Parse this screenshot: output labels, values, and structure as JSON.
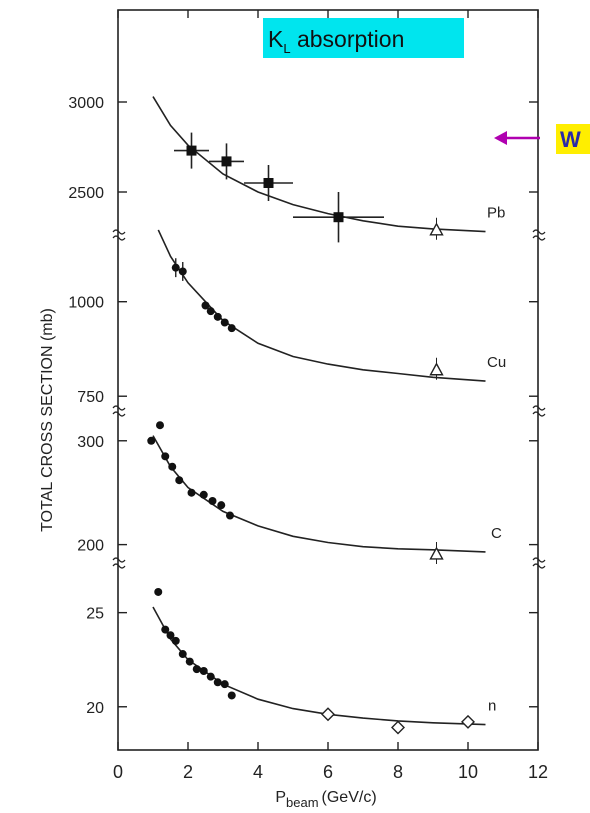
{
  "chart_data": {
    "type": "scatter",
    "title": "K",
    "title_subscript": "L",
    "title_rest": " absorption",
    "title_bg": "#00e5ee",
    "xlabel_main": "P",
    "xlabel_sub": "beam",
    "xlabel_unit": "(GeV/c)",
    "ylabel": "TOTAL CROSS SECTION (mb)",
    "x_ticks": [
      "0",
      "2",
      "4",
      "6",
      "8",
      "10",
      "12"
    ],
    "xlim": [
      0,
      12
    ],
    "annotation": {
      "text": "W",
      "text_bg": "#ffee00",
      "arrow_color": "#b000b0"
    },
    "panels": [
      {
        "name": "Pb",
        "ylim": [
          2300,
          3300
        ],
        "y_ticks": [
          "3000",
          "2500"
        ],
        "tick_values": [
          3000,
          2500
        ],
        "squares": [
          {
            "x": 2.1,
            "y": 2730,
            "xerr": 0.5,
            "yerr": 100
          },
          {
            "x": 3.1,
            "y": 2670,
            "xerr": 0.5,
            "yerr": 100
          },
          {
            "x": 4.3,
            "y": 2550,
            "xerr": 0.7,
            "yerr": 100
          },
          {
            "x": 6.3,
            "y": 2360,
            "xerr": 1.3,
            "yerr": 140
          }
        ],
        "triangles": [
          {
            "x": 9.1,
            "y": 2290
          }
        ],
        "curve": [
          [
            1.0,
            3030
          ],
          [
            1.5,
            2870
          ],
          [
            2,
            2760
          ],
          [
            3,
            2600
          ],
          [
            4,
            2500
          ],
          [
            5,
            2430
          ],
          [
            6,
            2380
          ],
          [
            7,
            2340
          ],
          [
            8,
            2310
          ],
          [
            9,
            2295
          ],
          [
            10.5,
            2280
          ]
        ]
      },
      {
        "name": "Cu",
        "ylim": [
          740,
          1150
        ],
        "y_ticks": [
          "1000",
          "750"
        ],
        "tick_values": [
          1000,
          750
        ],
        "dots": [
          {
            "x": 1.65,
            "y": 1090,
            "yerr": 25
          },
          {
            "x": 1.85,
            "y": 1080,
            "yerr": 25
          },
          {
            "x": 2.5,
            "y": 990
          },
          {
            "x": 2.65,
            "y": 975
          },
          {
            "x": 2.85,
            "y": 960
          },
          {
            "x": 3.05,
            "y": 945
          },
          {
            "x": 3.25,
            "y": 930
          }
        ],
        "triangles": [
          {
            "x": 9.1,
            "y": 820
          }
        ],
        "curve": [
          [
            1.15,
            1190
          ],
          [
            1.5,
            1120
          ],
          [
            2,
            1050
          ],
          [
            2.5,
            1000
          ],
          [
            3,
            950
          ],
          [
            4,
            890
          ],
          [
            5,
            855
          ],
          [
            6,
            835
          ],
          [
            7,
            820
          ],
          [
            8,
            810
          ],
          [
            9,
            800
          ],
          [
            10.5,
            790
          ]
        ]
      },
      {
        "name": "C",
        "ylim": [
          190,
          320
        ],
        "y_ticks": [
          "300",
          "200"
        ],
        "tick_values": [
          300,
          200
        ],
        "dots": [
          {
            "x": 0.95,
            "y": 300
          },
          {
            "x": 1.2,
            "y": 315
          },
          {
            "x": 1.35,
            "y": 285
          },
          {
            "x": 1.55,
            "y": 275
          },
          {
            "x": 1.75,
            "y": 262
          },
          {
            "x": 2.1,
            "y": 250
          },
          {
            "x": 2.45,
            "y": 248
          },
          {
            "x": 2.7,
            "y": 242
          },
          {
            "x": 2.95,
            "y": 238
          },
          {
            "x": 3.2,
            "y": 228
          }
        ],
        "triangles": [
          {
            "x": 9.1,
            "y": 191
          }
        ],
        "curve": [
          [
            1.0,
            305
          ],
          [
            1.5,
            275
          ],
          [
            2,
            255
          ],
          [
            3,
            232
          ],
          [
            4,
            218
          ],
          [
            5,
            208
          ],
          [
            6,
            202
          ],
          [
            7,
            198
          ],
          [
            8,
            196
          ],
          [
            9,
            195
          ],
          [
            10.5,
            193
          ]
        ]
      },
      {
        "name": "n",
        "ylim": [
          18.5,
          27
        ],
        "y_ticks": [
          "25",
          "20"
        ],
        "tick_values": [
          25,
          20
        ],
        "dots": [
          {
            "x": 1.15,
            "y": 26.1
          },
          {
            "x": 1.35,
            "y": 24.1
          },
          {
            "x": 1.5,
            "y": 23.8
          },
          {
            "x": 1.65,
            "y": 23.5
          },
          {
            "x": 1.85,
            "y": 22.8
          },
          {
            "x": 2.05,
            "y": 22.4
          },
          {
            "x": 2.25,
            "y": 22.0
          },
          {
            "x": 2.45,
            "y": 21.9
          },
          {
            "x": 2.65,
            "y": 21.6
          },
          {
            "x": 2.85,
            "y": 21.3
          },
          {
            "x": 3.05,
            "y": 21.2
          },
          {
            "x": 3.25,
            "y": 20.6
          }
        ],
        "diamonds": [
          {
            "x": 6.0,
            "y": 19.6
          },
          {
            "x": 8.0,
            "y": 18.9
          },
          {
            "x": 10.0,
            "y": 19.2
          }
        ],
        "curve": [
          [
            1.0,
            25.3
          ],
          [
            1.5,
            23.6
          ],
          [
            2,
            22.5
          ],
          [
            3,
            21.2
          ],
          [
            4,
            20.4
          ],
          [
            5,
            19.9
          ],
          [
            6,
            19.6
          ],
          [
            7,
            19.4
          ],
          [
            8,
            19.25
          ],
          [
            9,
            19.15
          ],
          [
            10.5,
            19.05
          ]
        ]
      }
    ]
  }
}
